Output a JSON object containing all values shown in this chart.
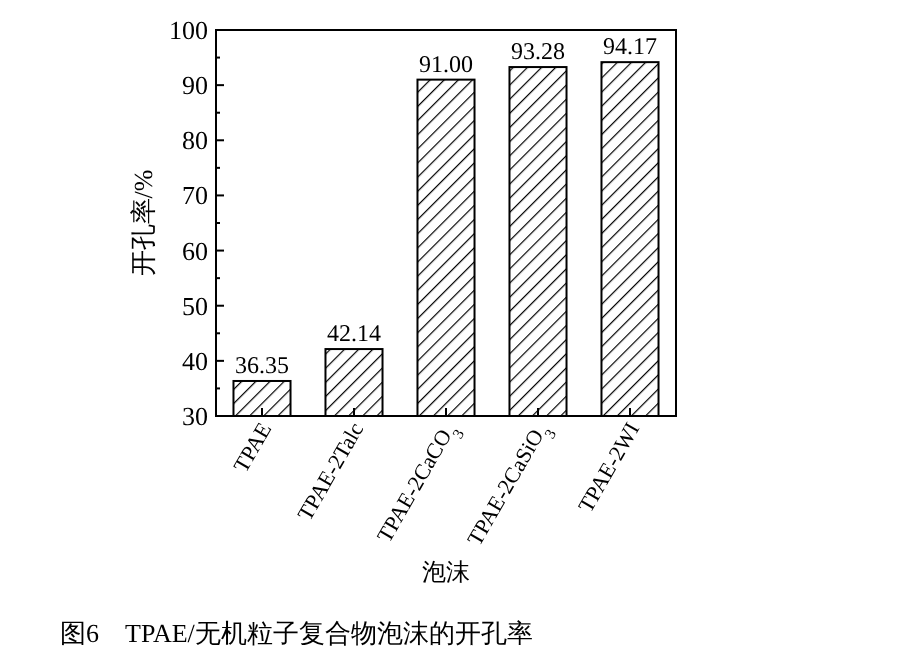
{
  "chart_data": {
    "type": "bar",
    "categories": [
      "TPAE",
      "TPAE-2Talc",
      "TPAE-2CaCO$_{3}$",
      "TPAE-2CaSiO$_{3}$",
      "TPAE-2WI"
    ],
    "values": [
      36.35,
      42.14,
      91.0,
      93.28,
      94.17
    ],
    "value_labels": [
      "36.35",
      "42.14",
      "91.00",
      "93.28",
      "94.17"
    ],
    "color": "#000000",
    "xlabel": "泡沫",
    "ylabel": "开孔率/%",
    "ylim": [
      30,
      100
    ],
    "yticks": [
      30,
      40,
      50,
      60,
      70,
      80,
      90,
      100
    ],
    "annotations": [
      "图6　TPAE/无机粒子复合物泡沫的开孔率"
    ]
  }
}
